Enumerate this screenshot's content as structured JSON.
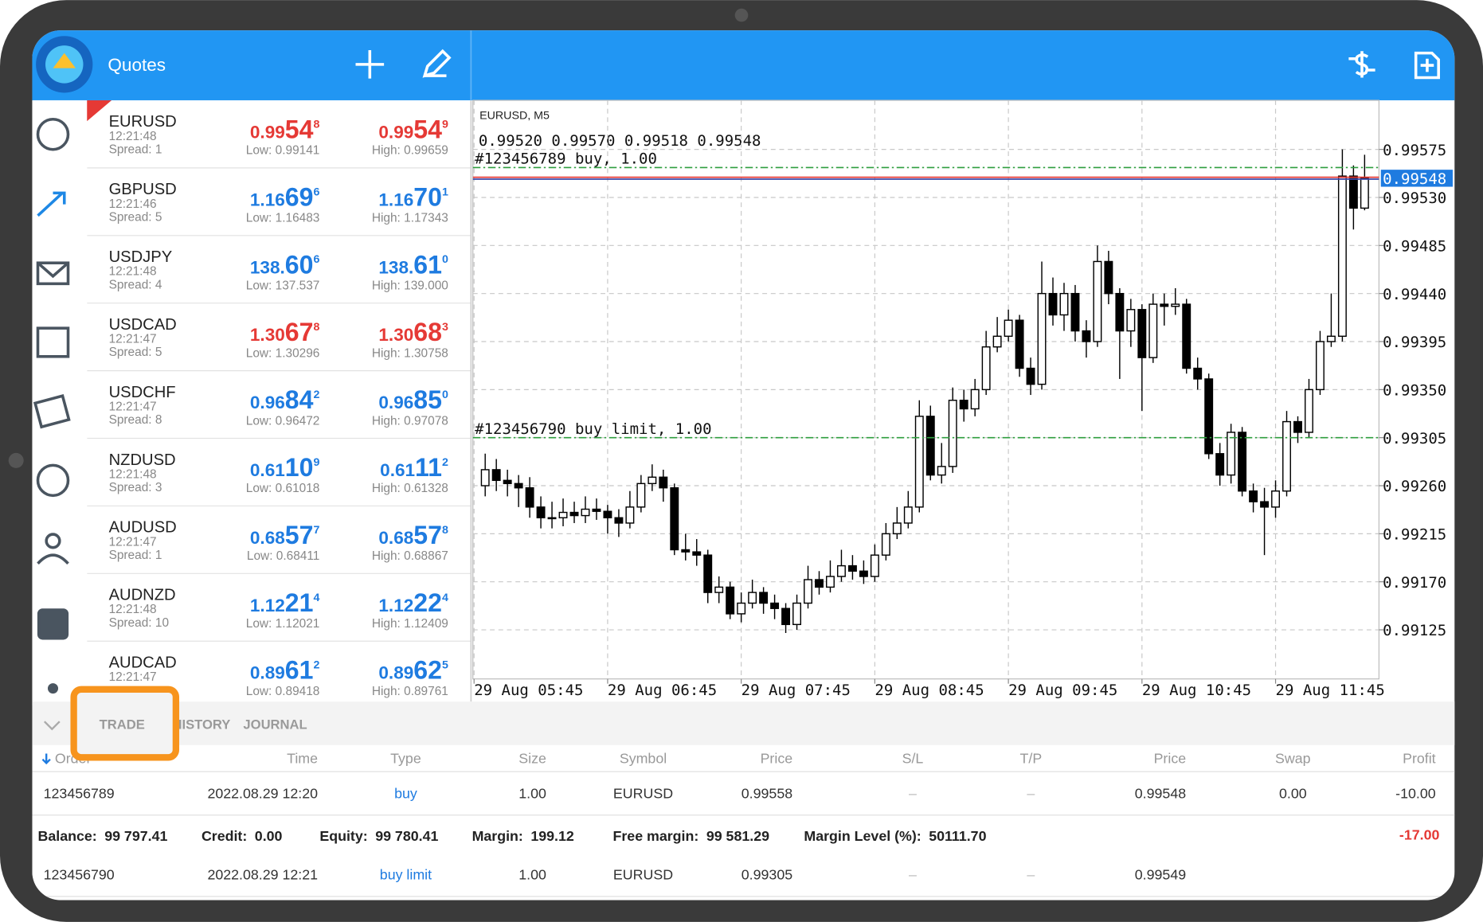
{
  "header": {
    "title": "Quotes"
  },
  "quotes": [
    {
      "symbol": "EURUSD",
      "time": "12:21:48",
      "spread": "Spread: 1",
      "bid": "0.99548",
      "ask": "0.99549",
      "low": "Low: 0.99141",
      "high": "High: 0.99659",
      "color": "#e53935"
    },
    {
      "symbol": "GBPUSD",
      "time": "12:21:46",
      "spread": "Spread: 5",
      "bid": "1.16696",
      "ask": "1.16701",
      "low": "Low: 1.16483",
      "high": "High: 1.17343",
      "color": "#1e7be0"
    },
    {
      "symbol": "USDJPY",
      "time": "12:21:48",
      "spread": "Spread: 4",
      "bid": "138.606",
      "ask": "138.610",
      "low": "Low: 137.537",
      "high": "High: 139.000",
      "color": "#1e7be0"
    },
    {
      "symbol": "USDCAD",
      "time": "12:21:47",
      "spread": "Spread: 5",
      "bid": "1.30678",
      "ask": "1.30683",
      "low": "Low: 1.30296",
      "high": "High: 1.30758",
      "color": "#e53935"
    },
    {
      "symbol": "USDCHF",
      "time": "12:21:47",
      "spread": "Spread: 8",
      "bid": "0.96842",
      "ask": "0.96850",
      "low": "Low: 0.96472",
      "high": "High: 0.97078",
      "color": "#1e7be0"
    },
    {
      "symbol": "NZDUSD",
      "time": "12:21:48",
      "spread": "Spread: 3",
      "bid": "0.61109",
      "ask": "0.61112",
      "low": "Low: 0.61018",
      "high": "High: 0.61328",
      "color": "#1e7be0"
    },
    {
      "symbol": "AUDUSD",
      "time": "12:21:47",
      "spread": "Spread: 1",
      "bid": "0.68577",
      "ask": "0.68578",
      "low": "Low: 0.68411",
      "high": "High: 0.68867",
      "color": "#1e7be0"
    },
    {
      "symbol": "AUDNZD",
      "time": "12:21:48",
      "spread": "Spread: 10",
      "bid": "1.12214",
      "ask": "1.12224",
      "low": "Low: 1.12021",
      "high": "High: 1.12409",
      "color": "#1e7be0"
    },
    {
      "symbol": "AUDCAD",
      "time": "12:21:47",
      "bid": "0.89612",
      "ask": "0.89625",
      "low": "Low: 0.89418",
      "high": "High: 0.89761",
      "color": "#1e7be0"
    }
  ],
  "chart_data": {
    "type": "candlestick",
    "title": "EURUSD, M5",
    "ohlc_label": "0.99520 0.99570 0.99518 0.99548",
    "open": [
      0.9926,
      0.99275,
      0.99265,
      0.99262,
      0.99258,
      0.9924,
      0.9923,
      0.9923,
      0.99235,
      0.99232,
      0.99238,
      0.99236,
      0.9923,
      0.99225,
      0.9924,
      0.99262,
      0.99268,
      0.99258,
      0.992,
      0.99198,
      0.99195,
      0.9916,
      0.99165,
      0.9914,
      0.9915,
      0.9916,
      0.9915,
      0.99145,
      0.9913,
      0.9915,
      0.99172,
      0.99165,
      0.99175,
      0.99185,
      0.9918,
      0.99175,
      0.99195,
      0.99215,
      0.99225,
      0.9924,
      0.99325,
      0.9927,
      0.99278,
      0.9934,
      0.99332,
      0.9935,
      0.9939,
      0.994,
      0.99415,
      0.9937,
      0.99355,
      0.9944,
      0.9942,
      0.9944,
      0.99405,
      0.99395,
      0.9947,
      0.9944,
      0.99405,
      0.99425,
      0.9938,
      0.9943,
      0.99428,
      0.9943,
      0.9937,
      0.9936,
      0.9929,
      0.9927,
      0.9931,
      0.99255,
      0.99245,
      0.9924,
      0.99255,
      0.9932,
      0.9931,
      0.9935,
      0.99395,
      0.994,
      0.9955,
      0.9952
    ],
    "high": [
      0.9929,
      0.99285,
      0.99275,
      0.9927,
      0.99268,
      0.9925,
      0.99245,
      0.99248,
      0.99245,
      0.9925,
      0.99248,
      0.99242,
      0.99238,
      0.99255,
      0.9927,
      0.9928,
      0.99275,
      0.99262,
      0.99215,
      0.9921,
      0.992,
      0.99175,
      0.9917,
      0.9916,
      0.99172,
      0.99165,
      0.99158,
      0.9915,
      0.99158,
      0.99185,
      0.9918,
      0.9919,
      0.992,
      0.99195,
      0.9919,
      0.99205,
      0.99225,
      0.9924,
      0.99255,
      0.9934,
      0.99335,
      0.993,
      0.99352,
      0.9935,
      0.9936,
      0.99405,
      0.99418,
      0.99425,
      0.9942,
      0.9938,
      0.9947,
      0.99455,
      0.9945,
      0.99448,
      0.99415,
      0.99485,
      0.9948,
      0.99445,
      0.99435,
      0.9943,
      0.9944,
      0.9944,
      0.99445,
      0.99435,
      0.9938,
      0.99365,
      0.993,
      0.99318,
      0.99315,
      0.99262,
      0.99258,
      0.99265,
      0.9933,
      0.99325,
      0.9936,
      0.99405,
      0.9944,
      0.99575,
      0.9956,
      0.9957
    ],
    "low": [
      0.9925,
      0.99255,
      0.9925,
      0.9924,
      0.9923,
      0.9922,
      0.9922,
      0.99222,
      0.99225,
      0.99225,
      0.99228,
      0.99215,
      0.99212,
      0.9922,
      0.99235,
      0.99255,
      0.99245,
      0.99195,
      0.9919,
      0.99185,
      0.9915,
      0.9915,
      0.99135,
      0.99132,
      0.99145,
      0.9914,
      0.99135,
      0.99122,
      0.99125,
      0.99145,
      0.99158,
      0.9916,
      0.9917,
      0.99172,
      0.99168,
      0.9917,
      0.9919,
      0.9921,
      0.9922,
      0.99235,
      0.99265,
      0.99262,
      0.99272,
      0.9932,
      0.99325,
      0.99345,
      0.99385,
      0.99395,
      0.99362,
      0.99345,
      0.9935,
      0.9941,
      0.99405,
      0.99395,
      0.9938,
      0.9939,
      0.9943,
      0.9936,
      0.9939,
      0.9933,
      0.99375,
      0.9941,
      0.9942,
      0.99365,
      0.9935,
      0.99285,
      0.9926,
      0.99262,
      0.9925,
      0.99235,
      0.99195,
      0.9923,
      0.9925,
      0.993,
      0.99305,
      0.99345,
      0.9939,
      0.99395,
      0.995,
      0.99518
    ],
    "close": [
      0.99275,
      0.99265,
      0.99262,
      0.99258,
      0.9924,
      0.9923,
      0.9923,
      0.99235,
      0.99232,
      0.99238,
      0.99236,
      0.9923,
      0.99225,
      0.9924,
      0.99262,
      0.99268,
      0.99258,
      0.992,
      0.99198,
      0.99195,
      0.9916,
      0.99165,
      0.9914,
      0.9915,
      0.9916,
      0.9915,
      0.99145,
      0.9913,
      0.9915,
      0.99172,
      0.99165,
      0.99175,
      0.99185,
      0.9918,
      0.99175,
      0.99195,
      0.99215,
      0.99225,
      0.9924,
      0.99325,
      0.9927,
      0.99278,
      0.9934,
      0.99332,
      0.9935,
      0.9939,
      0.994,
      0.99415,
      0.9937,
      0.99355,
      0.9944,
      0.9942,
      0.9944,
      0.99405,
      0.99395,
      0.9947,
      0.9944,
      0.99405,
      0.99425,
      0.9938,
      0.9943,
      0.99428,
      0.9943,
      0.9937,
      0.9936,
      0.9929,
      0.9927,
      0.9931,
      0.99255,
      0.99245,
      0.9924,
      0.99255,
      0.9932,
      0.9931,
      0.9935,
      0.99395,
      0.994,
      0.9955,
      0.9952,
      0.99548
    ],
    "ylim": [
      0.99079,
      0.99621
    ],
    "yticks": [
      {
        "value": 0.99575,
        "label": "0.99575"
      },
      {
        "value": 0.9953,
        "label": "0.99530"
      },
      {
        "value": 0.99485,
        "label": "0.99485"
      },
      {
        "value": 0.9944,
        "label": "0.99440"
      },
      {
        "value": 0.99395,
        "label": "0.99395"
      },
      {
        "value": 0.9935,
        "label": "0.99350"
      },
      {
        "value": 0.99305,
        "label": "0.99305"
      },
      {
        "value": 0.9926,
        "label": "0.99260"
      },
      {
        "value": 0.99215,
        "label": "0.99215"
      },
      {
        "value": 0.9917,
        "label": "0.99170"
      },
      {
        "value": 0.99125,
        "label": "0.99125"
      }
    ],
    "xticks": [
      {
        "value": -1,
        "label": "29 Aug 05:45"
      },
      {
        "value": 11,
        "label": "29 Aug 06:45"
      },
      {
        "value": 23,
        "label": "29 Aug 07:45"
      },
      {
        "value": 35,
        "label": "29 Aug 08:45"
      },
      {
        "value": 47,
        "label": "29 Aug 09:45"
      },
      {
        "value": 59,
        "label": "29 Aug 10:45"
      },
      {
        "value": 71,
        "label": "29 Aug 11:45"
      }
    ],
    "grid": true,
    "orders": [
      {
        "label": "#123456789 buy, 1.00",
        "value": 0.99558,
        "color": "#2e9e3e"
      },
      {
        "label": "#123456790 buy limit, 1.00",
        "value": 0.99305,
        "color": "#2e9e3e"
      }
    ],
    "bid": {
      "value": 0.99548,
      "label": "0.99548",
      "color": "#1e7be0"
    }
  },
  "tabs": [
    "TRADE",
    "HISTORY",
    "JOURNAL"
  ],
  "table": {
    "columns": [
      "Order",
      "Time",
      "Type",
      "Size",
      "Symbol",
      "Price",
      "S/L",
      "T/P",
      "Price",
      "Swap",
      "Profit"
    ],
    "rows": [
      [
        "123456789",
        "2022.08.29 12:20",
        "buy",
        "1.00",
        "EURUSD",
        "0.99558",
        "–",
        "–",
        "0.99548",
        "0.00",
        "-10.00"
      ],
      [
        "123456790",
        "2022.08.29 12:21",
        "buy limit",
        "1.00",
        "EURUSD",
        "0.99305",
        "–",
        "–",
        "0.99549"
      ]
    ],
    "summary": [
      {
        "label": "Balance:",
        "value": "99 797.41"
      },
      {
        "label": "Credit:",
        "value": "0.00"
      },
      {
        "label": "Equity:",
        "value": "99 780.41"
      },
      {
        "label": "Margin:",
        "value": "199.12"
      },
      {
        "label": "Free margin:",
        "value": "99 581.29"
      },
      {
        "label": "Margin Level (%):",
        "value": "50111.70"
      }
    ],
    "total": "-17.00"
  }
}
